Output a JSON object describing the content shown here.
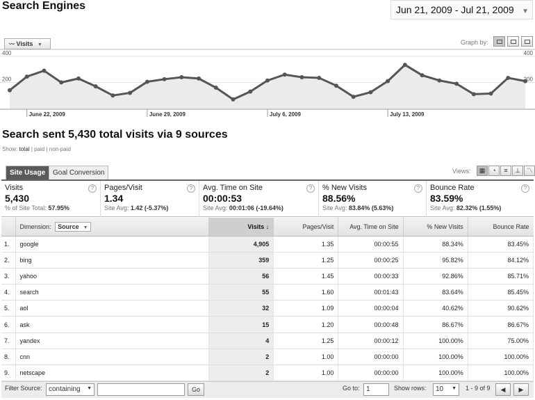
{
  "header": {
    "title": "Search Engines",
    "date_range": "Jun 21, 2009 - Jul 21, 2009"
  },
  "graph": {
    "metric": "Visits",
    "graph_by_label": "Graph by:",
    "y_ticks": [
      "400",
      "200"
    ],
    "x_labels": [
      "June 22, 2009",
      "June 29, 2009",
      "July 6, 2009",
      "July 13, 2009"
    ],
    "line_color": "#555555",
    "fill_color": "#ebebeb",
    "values": [
      140,
      245,
      290,
      200,
      230,
      170,
      100,
      120,
      205,
      225,
      240,
      230,
      160,
      70,
      130,
      215,
      260,
      240,
      235,
      175,
      90,
      125,
      210,
      335,
      255,
      215,
      190,
      110,
      115,
      235,
      210
    ]
  },
  "summary": {
    "title": "Search sent 5,430 total visits via 9 sources",
    "show_label": "Show:",
    "show_total": "total",
    "show_paid": "paid",
    "show_nonpaid": "non-paid"
  },
  "tabs": {
    "site_usage": "Site Usage",
    "goal_conversion": "Goal Conversion",
    "views_label": "Views:"
  },
  "scorecards": [
    {
      "label": "Visits",
      "value": "5,430",
      "sub_prefix": "% of Site Total:",
      "sub_value": "57.95%"
    },
    {
      "label": "Pages/Visit",
      "value": "1.34",
      "sub_prefix": "Site Avg:",
      "sub_value": "1.42 (-5.37%)"
    },
    {
      "label": "Avg. Time on Site",
      "value": "00:00:53",
      "sub_prefix": "Site Avg:",
      "sub_value": "00:01:06 (-19.64%)"
    },
    {
      "label": "% New Visits",
      "value": "88.56%",
      "sub_prefix": "Site Avg:",
      "sub_value": "83.84% (5.63%)"
    },
    {
      "label": "Bounce Rate",
      "value": "83.59%",
      "sub_prefix": "Site Avg:",
      "sub_value": "82.32% (1.55%)"
    }
  ],
  "table": {
    "dimension_label": "Dimension:",
    "dimension_value": "Source",
    "columns": [
      "Visits",
      "Pages/Visit",
      "Avg. Time on Site",
      "% New Visits",
      "Bounce Rate"
    ],
    "sort_indicator": "↓",
    "rows": [
      {
        "idx": "1.",
        "source": "google",
        "visits": "4,905",
        "pv": "1.35",
        "time": "00:00:55",
        "new": "88.34%",
        "bounce": "83.45%"
      },
      {
        "idx": "2.",
        "source": "bing",
        "visits": "359",
        "pv": "1.25",
        "time": "00:00:25",
        "new": "95.82%",
        "bounce": "84.12%"
      },
      {
        "idx": "3.",
        "source": "yahoo",
        "visits": "56",
        "pv": "1.45",
        "time": "00:00:33",
        "new": "92.86%",
        "bounce": "85.71%"
      },
      {
        "idx": "4.",
        "source": "search",
        "visits": "55",
        "pv": "1.60",
        "time": "00:01:43",
        "new": "83.64%",
        "bounce": "85.45%"
      },
      {
        "idx": "5.",
        "source": "aol",
        "visits": "32",
        "pv": "1.09",
        "time": "00:00:04",
        "new": "40.62%",
        "bounce": "90.62%"
      },
      {
        "idx": "6.",
        "source": "ask",
        "visits": "15",
        "pv": "1.20",
        "time": "00:00:48",
        "new": "86.67%",
        "bounce": "86.67%"
      },
      {
        "idx": "7.",
        "source": "yandex",
        "visits": "4",
        "pv": "1.25",
        "time": "00:00:12",
        "new": "100.00%",
        "bounce": "75.00%"
      },
      {
        "idx": "8.",
        "source": "cnn",
        "visits": "2",
        "pv": "1.00",
        "time": "00:00:00",
        "new": "100.00%",
        "bounce": "100.00%"
      },
      {
        "idx": "9.",
        "source": "netscape",
        "visits": "2",
        "pv": "1.00",
        "time": "00:00:00",
        "new": "100.00%",
        "bounce": "100.00%"
      }
    ]
  },
  "footer": {
    "filter_label": "Filter Source:",
    "filter_mode": "containing",
    "filter_value": "",
    "go_label": "Go",
    "goto_label": "Go to:",
    "goto_value": "1",
    "show_rows_label": "Show rows:",
    "show_rows_value": "10",
    "range_text": "1 - 9 of 9",
    "prev": "◀",
    "next": "▶"
  }
}
